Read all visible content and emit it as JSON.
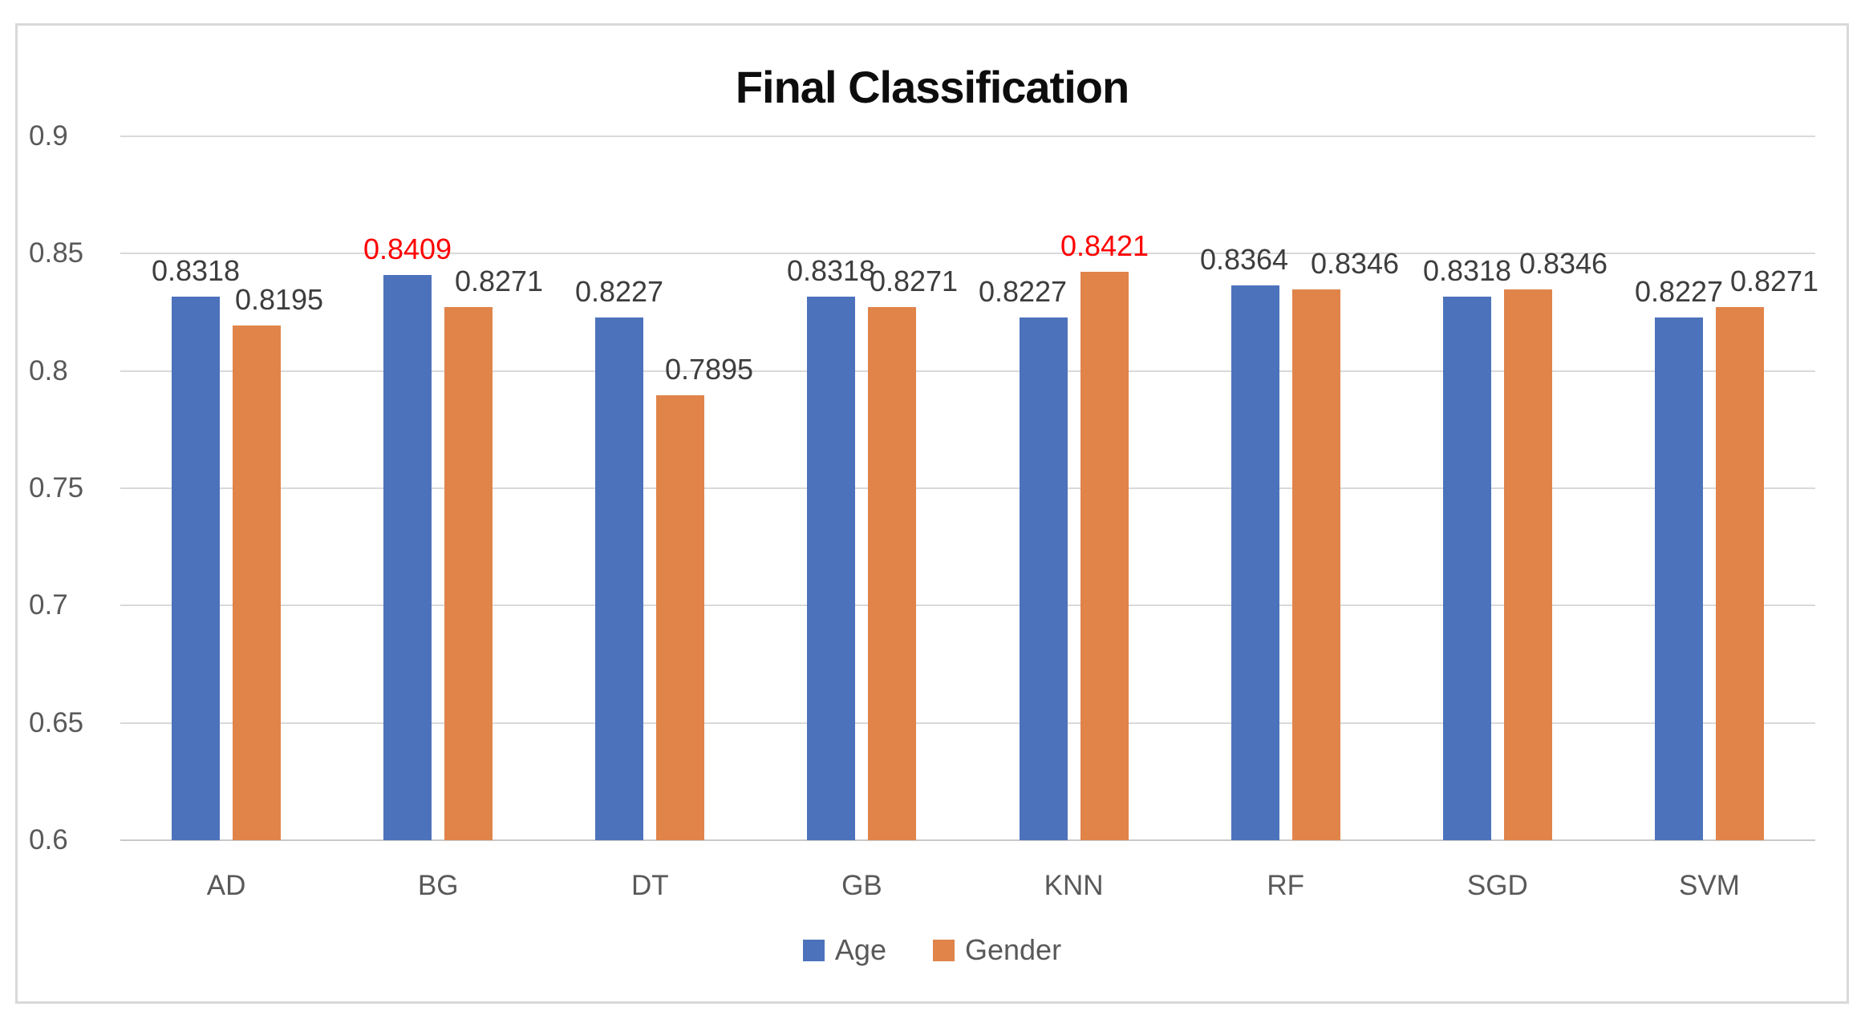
{
  "chart_data": {
    "type": "bar",
    "title": "Final Classification",
    "categories": [
      "AD",
      "BG",
      "DT",
      "GB",
      "KNN",
      "RF",
      "SGD",
      "SVM"
    ],
    "series": [
      {
        "name": "Age",
        "color": "#4c72bc",
        "values": [
          0.8318,
          0.8409,
          0.8227,
          0.8318,
          0.8227,
          0.8364,
          0.8318,
          0.8227
        ],
        "labels": [
          "0.8318",
          "0.8409",
          "0.8227",
          "0.8318",
          "0.8227",
          "0.8364",
          "0.8318",
          "0.8227"
        ],
        "red_label_indices": [
          1
        ]
      },
      {
        "name": "Gender",
        "color": "#e0844a",
        "values": [
          0.8195,
          0.8271,
          0.7895,
          0.8271,
          0.8421,
          0.8346,
          0.8346,
          0.8271
        ],
        "labels": [
          "0.8195",
          "0.8271",
          "0.7895",
          "0.8271",
          "0.8421",
          "0.8346",
          "0.8346",
          "0.8271"
        ],
        "red_label_indices": [
          4
        ]
      }
    ],
    "ylim": [
      0.6,
      0.9
    ],
    "ytick_labels": [
      "0.9",
      "0.85",
      "0.8",
      "0.75",
      "0.7",
      "0.65",
      "0.6"
    ],
    "grid": true,
    "legend_position": "bottom",
    "colors": {
      "age_bar": "#4c72bc",
      "gender_bar": "#e0844a",
      "data_label": "#3d3d3d",
      "highlight_label": "#ff0000",
      "axis_text": "#595959",
      "gridline": "#d9d9d9",
      "title_text": "#0d0d0d",
      "card_border": "#d9d9d9",
      "background": "#ffffff"
    }
  }
}
